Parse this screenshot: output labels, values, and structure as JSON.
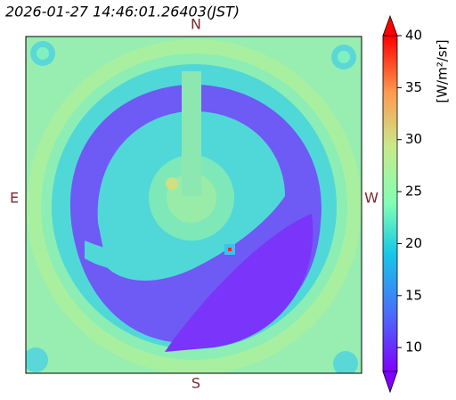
{
  "chart_data": {
    "type": "heatmap",
    "title": "2026-01-27 14:46:01.26403(JST)",
    "directions": {
      "top": "N",
      "bottom": "S",
      "left": "E",
      "right": "W"
    },
    "colorbar_label": "[W/m²/sr]",
    "colormap": "rainbow",
    "clim": [
      7.7,
      40
    ],
    "cticks": [
      10,
      15,
      20,
      25,
      30,
      35,
      40
    ],
    "extend": "both"
  }
}
